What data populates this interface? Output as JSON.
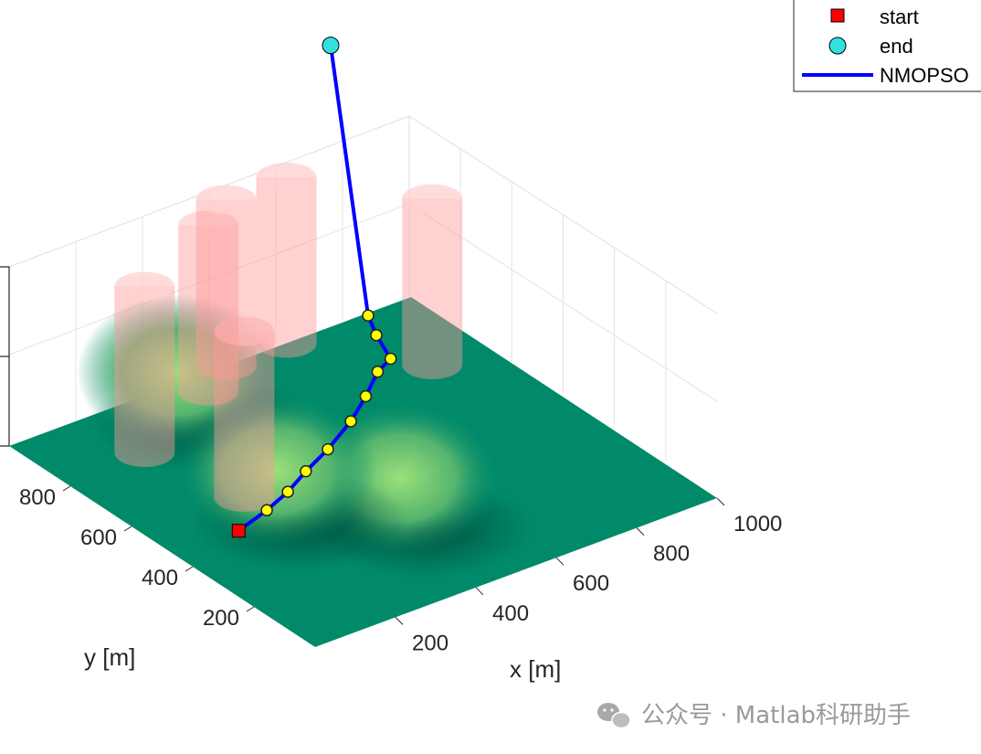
{
  "chart_data": {
    "type": "surface3d",
    "xlabel": "x [m]",
    "ylabel": "y [m]",
    "xlim": [
      0,
      1000
    ],
    "ylim": [
      0,
      1000
    ],
    "x_ticks": [
      "200",
      "400",
      "600",
      "800",
      "1000"
    ],
    "y_ticks": [
      "200",
      "400",
      "600",
      "800"
    ],
    "legend": {
      "position": "top-right",
      "entries": [
        {
          "label": "start",
          "marker": "red-square"
        },
        {
          "label": "end",
          "marker": "cyan-circle"
        },
        {
          "label": "NMOPSO",
          "marker": "blue-line"
        }
      ]
    },
    "start": {
      "x": 160,
      "y": 460
    },
    "end": {
      "x": 800,
      "y": 1000
    },
    "path_waypoints": [
      {
        "x": 230,
        "y": 460
      },
      {
        "x": 290,
        "y": 470
      },
      {
        "x": 350,
        "y": 490
      },
      {
        "x": 420,
        "y": 510
      },
      {
        "x": 500,
        "y": 540
      },
      {
        "x": 560,
        "y": 570
      },
      {
        "x": 620,
        "y": 610
      },
      {
        "x": 660,
        "y": 620
      },
      {
        "x": 670,
        "y": 680
      },
      {
        "x": 680,
        "y": 720
      }
    ],
    "obstacles": [
      {
        "x": 250,
        "y": 560
      },
      {
        "x": 450,
        "y": 940
      },
      {
        "x": 200,
        "y": 820
      },
      {
        "x": 690,
        "y": 1000
      },
      {
        "x": 870,
        "y": 760
      },
      {
        "x": 540,
        "y": 1000
      }
    ],
    "terrain_peaks": [
      {
        "x": 480,
        "y": 350
      },
      {
        "x": 380,
        "y": 950
      },
      {
        "x": 300,
        "y": 520
      }
    ],
    "colors": {
      "terrain_low": "#008a6a",
      "terrain_high": "#8ed66a",
      "obstacle": "#ff9a9a",
      "path": "#0000ff",
      "waypoint": "#ffff00",
      "start": "#ff0000",
      "end": "#33e0e0"
    }
  },
  "watermark": {
    "text": "公众号 · Matlab科研助手",
    "icon": "wechat-icon"
  }
}
